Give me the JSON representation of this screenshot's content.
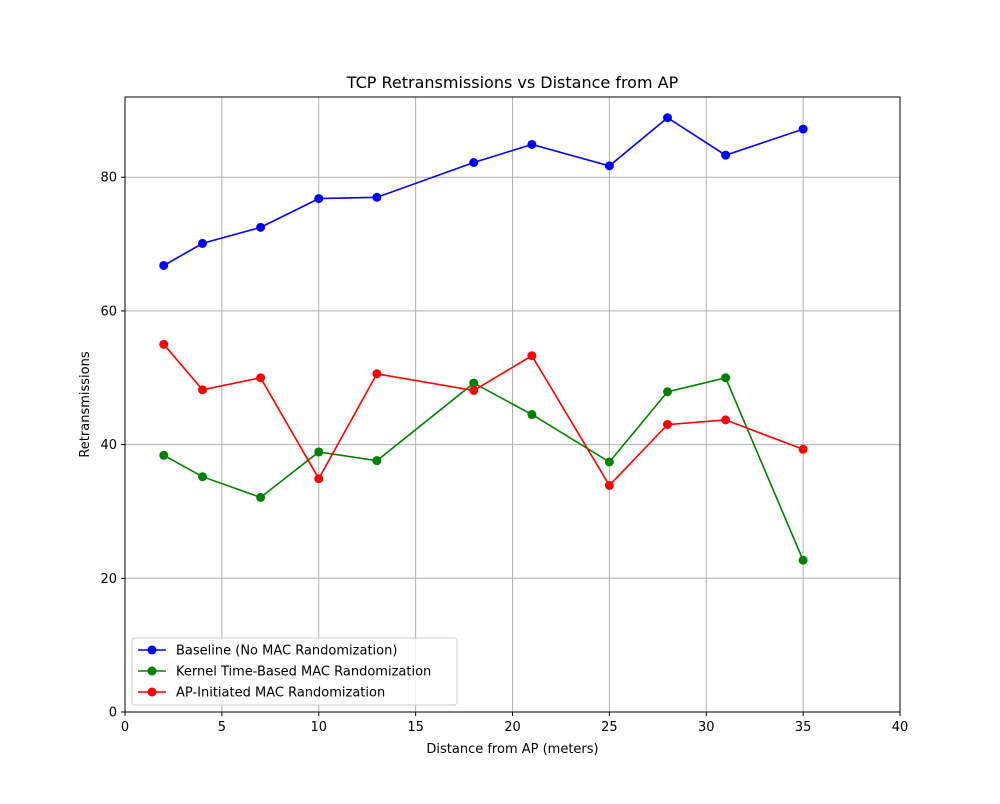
{
  "chart_data": {
    "type": "line",
    "title": "TCP Retransmissions vs Distance from AP",
    "xlabel": "Distance from AP (meters)",
    "ylabel": "Retransmissions",
    "xlim": [
      0,
      40
    ],
    "ylim": [
      0,
      92
    ],
    "xticks": [
      0,
      5,
      10,
      15,
      20,
      25,
      30,
      35,
      40
    ],
    "yticks": [
      0,
      20,
      40,
      60,
      80
    ],
    "grid": true,
    "legend_position": "lower-left",
    "x": [
      2,
      4,
      7,
      10,
      13,
      18,
      21,
      25,
      28,
      31,
      35
    ],
    "series": [
      {
        "name": "Baseline (No MAC Randomization)",
        "color": "#0000ff",
        "values": [
          66.8,
          70.1,
          72.5,
          76.8,
          77.0,
          82.2,
          84.9,
          81.7,
          88.9,
          83.3,
          87.2
        ]
      },
      {
        "name": "Kernel Time-Based MAC Randomization",
        "color": "#008000",
        "values": [
          38.4,
          35.2,
          32.1,
          38.9,
          37.6,
          49.2,
          44.5,
          37.4,
          47.9,
          50.0,
          22.7
        ]
      },
      {
        "name": "AP-Initiated MAC Randomization",
        "color": "#ff0000",
        "values": [
          55.0,
          48.2,
          50.0,
          34.9,
          50.6,
          48.1,
          53.3,
          33.9,
          43.0,
          43.7,
          39.3
        ]
      }
    ]
  }
}
